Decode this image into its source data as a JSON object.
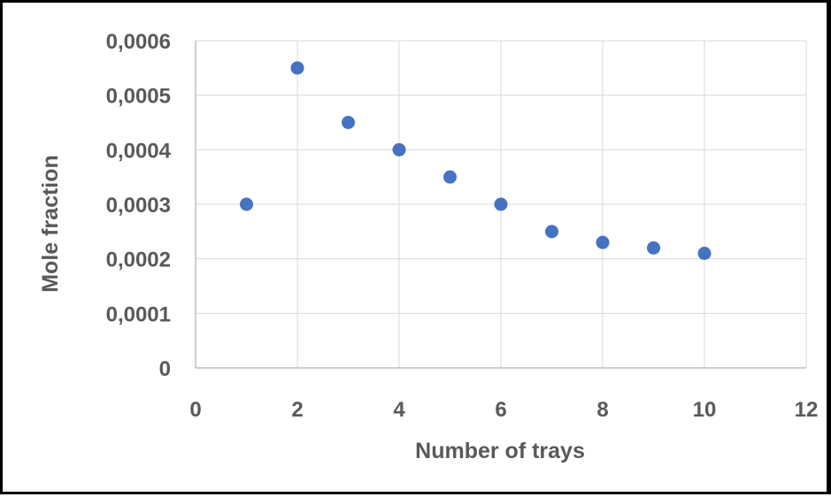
{
  "chart_data": {
    "type": "scatter",
    "title": "",
    "xlabel": "Number of trays",
    "ylabel": "Mole fraction",
    "xlim": [
      0,
      12
    ],
    "ylim": [
      0,
      0.0006
    ],
    "x_ticks": [
      "0",
      "2",
      "4",
      "6",
      "8",
      "10",
      "12"
    ],
    "y_ticks": [
      "0",
      "0,0001",
      "0,0002",
      "0,0003",
      "0,0004",
      "0,0005",
      "0,0006"
    ],
    "grid": true,
    "legend": "none",
    "marker_color": "#4472c4",
    "series": [
      {
        "x": [
          1,
          2,
          3,
          4,
          5,
          6,
          7,
          8,
          9,
          10
        ],
        "y": [
          0.0003,
          0.00055,
          0.00045,
          0.0004,
          0.00035,
          0.0003,
          0.00025,
          0.00023,
          0.00022,
          0.00021
        ]
      }
    ]
  }
}
